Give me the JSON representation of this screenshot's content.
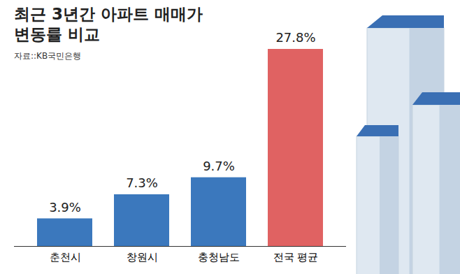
{
  "chart_data": {
    "type": "bar",
    "title": "최근 3년간 아파트 매매가\n변동률 비교",
    "subtitle": "자료::KB국민은행",
    "categories": [
      "춘천시",
      "창원시",
      "충청남도",
      "전국 평균"
    ],
    "values": [
      3.9,
      7.3,
      9.7,
      27.8
    ],
    "value_labels": [
      "3.9%",
      "7.3%",
      "9.7%",
      "27.8%"
    ],
    "colors": [
      "#3b78bd",
      "#3b78bd",
      "#3b78bd",
      "#e06262"
    ],
    "data_labels": true,
    "tick_labels": "x",
    "grid": false
  }
}
